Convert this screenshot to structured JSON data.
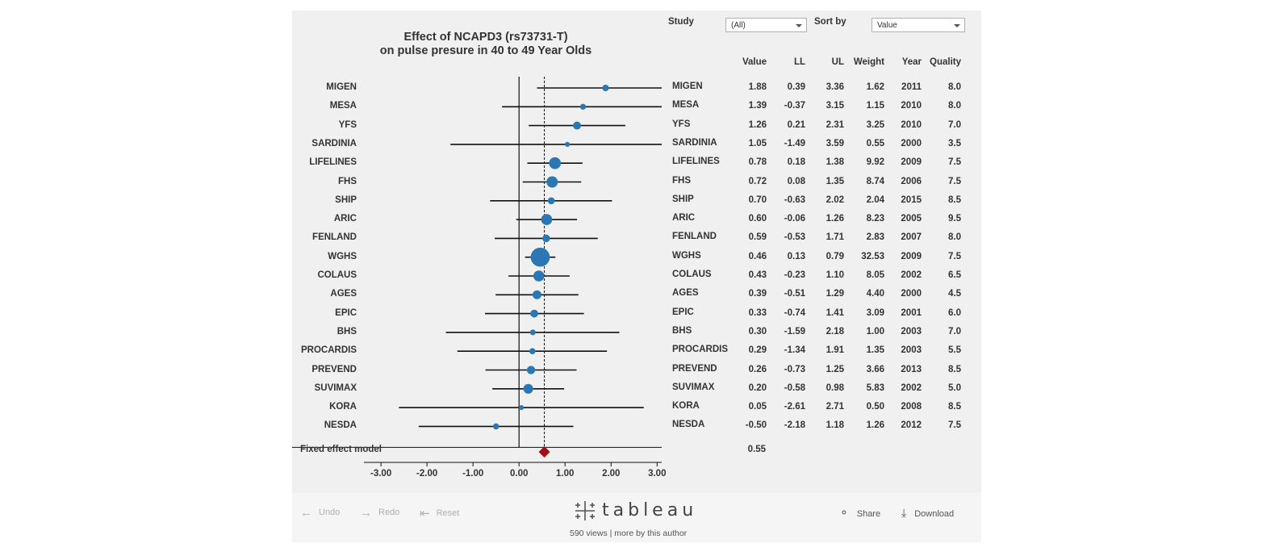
{
  "title_line1": "Effect of NCAPD3 (rs73731-T)",
  "title_line2": "on pulse presure in 40 to 49 Year Olds",
  "filters": {
    "study_label": "Study",
    "study_value": "(All)",
    "sort_label": "Sort by",
    "sort_value": "Value"
  },
  "columns": [
    "Value",
    "LL",
    "UL",
    "Weight",
    "Year",
    "Quality"
  ],
  "colors": {
    "point": "#2a77b4",
    "diamond": "#a30e14",
    "line": "#111111"
  },
  "chart_data": {
    "type": "forest",
    "x_ticks": [
      "-3.00",
      "-2.00",
      "-1.00",
      "0.00",
      "1.00",
      "2.00",
      "3.00"
    ],
    "xlim": [
      -3.3,
      3.1
    ],
    "reference_line": 0.0,
    "pooled_line": 0.55,
    "studies": [
      {
        "name": "MIGEN",
        "value": "1.88",
        "ll": "0.39",
        "ul": "3.36",
        "weight": "1.62",
        "year": "2011",
        "quality": "8.0"
      },
      {
        "name": "MESA",
        "value": "1.39",
        "ll": "-0.37",
        "ul": "3.15",
        "weight": "1.15",
        "year": "2010",
        "quality": "8.0"
      },
      {
        "name": "YFS",
        "value": "1.26",
        "ll": "0.21",
        "ul": "2.31",
        "weight": "3.25",
        "year": "2010",
        "quality": "7.0"
      },
      {
        "name": "SARDINIA",
        "value": "1.05",
        "ll": "-1.49",
        "ul": "3.59",
        "weight": "0.55",
        "year": "2000",
        "quality": "3.5"
      },
      {
        "name": "LIFELINES",
        "value": "0.78",
        "ll": "0.18",
        "ul": "1.38",
        "weight": "9.92",
        "year": "2009",
        "quality": "7.5"
      },
      {
        "name": "FHS",
        "value": "0.72",
        "ll": "0.08",
        "ul": "1.35",
        "weight": "8.74",
        "year": "2006",
        "quality": "7.5"
      },
      {
        "name": "SHIP",
        "value": "0.70",
        "ll": "-0.63",
        "ul": "2.02",
        "weight": "2.04",
        "year": "2015",
        "quality": "8.5"
      },
      {
        "name": "ARIC",
        "value": "0.60",
        "ll": "-0.06",
        "ul": "1.26",
        "weight": "8.23",
        "year": "2005",
        "quality": "9.5"
      },
      {
        "name": "FENLAND",
        "value": "0.59",
        "ll": "-0.53",
        "ul": "1.71",
        "weight": "2.83",
        "year": "2007",
        "quality": "8.0"
      },
      {
        "name": "WGHS",
        "value": "0.46",
        "ll": "0.13",
        "ul": "0.79",
        "weight": "32.53",
        "year": "2009",
        "quality": "7.5"
      },
      {
        "name": "COLAUS",
        "value": "0.43",
        "ll": "-0.23",
        "ul": "1.10",
        "weight": "8.05",
        "year": "2002",
        "quality": "6.5"
      },
      {
        "name": "AGES",
        "value": "0.39",
        "ll": "-0.51",
        "ul": "1.29",
        "weight": "4.40",
        "year": "2000",
        "quality": "4.5"
      },
      {
        "name": "EPIC",
        "value": "0.33",
        "ll": "-0.74",
        "ul": "1.41",
        "weight": "3.09",
        "year": "2001",
        "quality": "6.0"
      },
      {
        "name": "BHS",
        "value": "0.30",
        "ll": "-1.59",
        "ul": "2.18",
        "weight": "1.00",
        "year": "2003",
        "quality": "7.0"
      },
      {
        "name": "PROCARDIS",
        "value": "0.29",
        "ll": "-1.34",
        "ul": "1.91",
        "weight": "1.35",
        "year": "2003",
        "quality": "5.5"
      },
      {
        "name": "PREVEND",
        "value": "0.26",
        "ll": "-0.73",
        "ul": "1.25",
        "weight": "3.66",
        "year": "2013",
        "quality": "8.5"
      },
      {
        "name": "SUVIMAX",
        "value": "0.20",
        "ll": "-0.58",
        "ul": "0.98",
        "weight": "5.83",
        "year": "2002",
        "quality": "5.0"
      },
      {
        "name": "KORA",
        "value": "0.05",
        "ll": "-2.61",
        "ul": "2.71",
        "weight": "0.50",
        "year": "2008",
        "quality": "8.5"
      },
      {
        "name": "NESDA",
        "value": "-0.50",
        "ll": "-2.18",
        "ul": "1.18",
        "weight": "1.26",
        "year": "2012",
        "quality": "7.5"
      }
    ],
    "fixed_effect": {
      "label": "Fixed effect model",
      "value": "0.55"
    }
  },
  "footer": {
    "undo": "Undo",
    "redo": "Redo",
    "reset": "Reset",
    "brand": "tableau",
    "views": "590 views",
    "more": "more by this author",
    "share": "Share",
    "download": "Download"
  }
}
